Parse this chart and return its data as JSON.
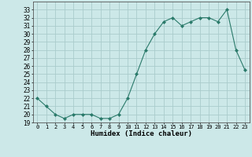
{
  "x": [
    0,
    1,
    2,
    3,
    4,
    5,
    6,
    7,
    8,
    9,
    10,
    11,
    12,
    13,
    14,
    15,
    16,
    17,
    18,
    19,
    20,
    21,
    22,
    23
  ],
  "y": [
    22,
    21,
    20,
    19.5,
    20,
    20,
    20,
    19.5,
    19.5,
    20,
    22,
    25,
    28,
    30,
    31.5,
    32,
    31,
    31.5,
    32,
    32,
    31.5,
    33,
    28,
    25.5
  ],
  "title": "",
  "xlabel": "Humidex (Indice chaleur)",
  "ylim": [
    19,
    34
  ],
  "xlim": [
    -0.5,
    23.5
  ],
  "line_color": "#2a7a6a",
  "marker_color": "#2a7a6a",
  "bg_color": "#cce8e8",
  "grid_color": "#aacccc",
  "yticks": [
    19,
    20,
    21,
    22,
    23,
    24,
    25,
    26,
    27,
    28,
    29,
    30,
    31,
    32,
    33
  ],
  "xticks": [
    0,
    1,
    2,
    3,
    4,
    5,
    6,
    7,
    8,
    9,
    10,
    11,
    12,
    13,
    14,
    15,
    16,
    17,
    18,
    19,
    20,
    21,
    22,
    23
  ]
}
